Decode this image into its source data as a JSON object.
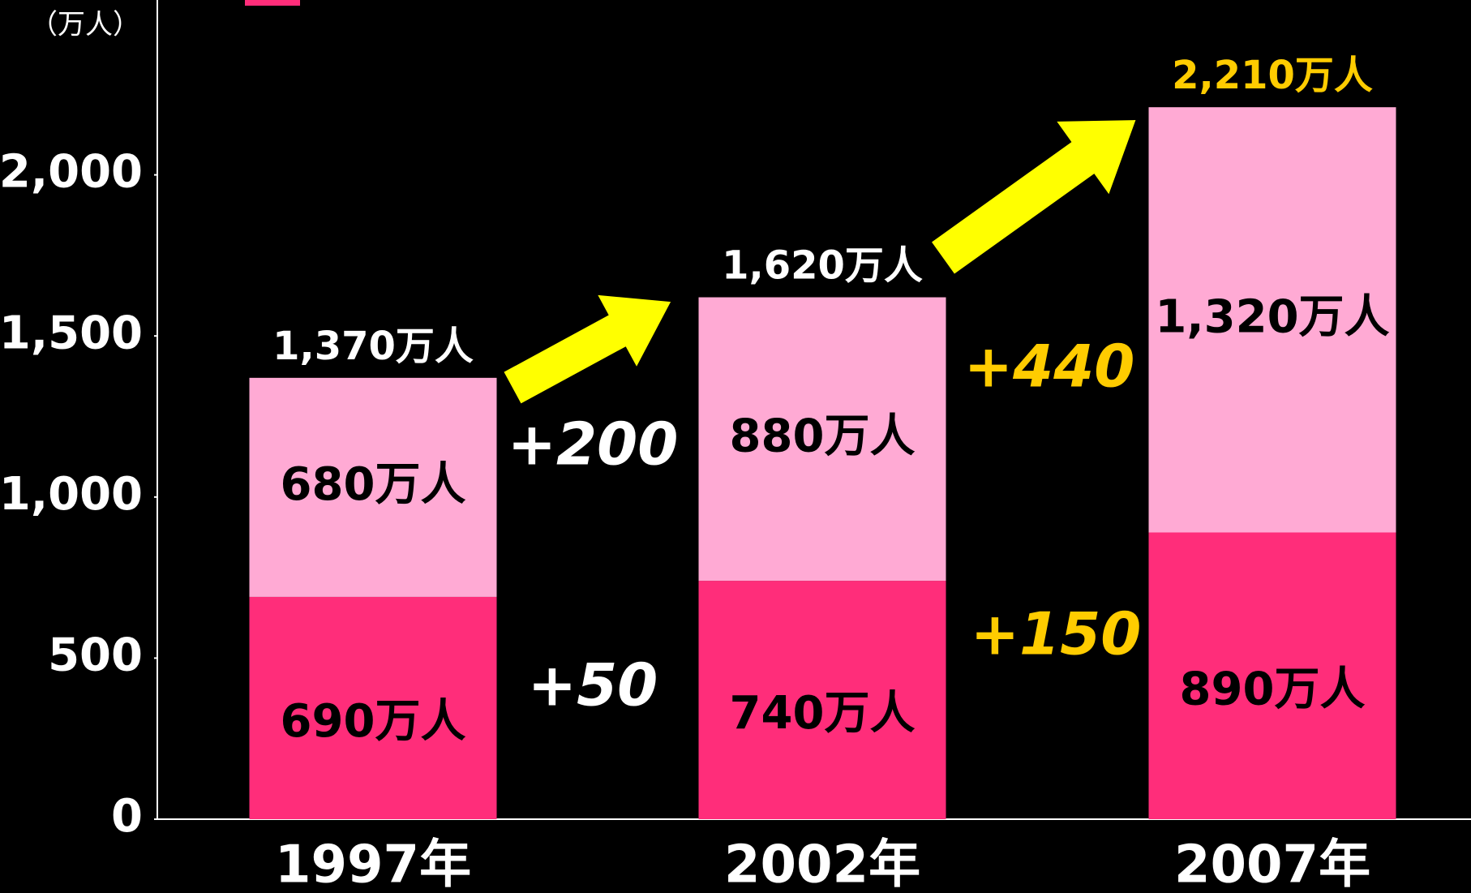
{
  "chart_data": {
    "type": "stacked_bar",
    "y_unit_label": "（万人）",
    "categories": [
      "1997年",
      "2002年",
      "2007年"
    ],
    "series": [
      {
        "color": "#ff2d7a",
        "values": [
          690,
          740,
          890
        ],
        "value_labels": [
          "690万人",
          "740万人",
          "890万人"
        ]
      },
      {
        "color": "#ffaad4",
        "values": [
          680,
          880,
          1320
        ],
        "value_labels": [
          "680万人",
          "880万人",
          "1,320万人"
        ]
      }
    ],
    "totals": {
      "values": [
        1370,
        1620,
        2210
      ],
      "value_labels": [
        "1,370万人",
        "1,620万人",
        "2,210万人"
      ],
      "colors": [
        "#ffffff",
        "#ffffff",
        "#ffcc00"
      ]
    },
    "annotations": [
      {
        "text": "+200",
        "color": "#ffffff"
      },
      {
        "text": "+50",
        "color": "#ffffff"
      },
      {
        "text": "+440",
        "color": "#ffcc00"
      },
      {
        "text": "+150",
        "color": "#ffcc00"
      }
    ],
    "ylim": [
      0,
      2500
    ],
    "yticks": [
      0,
      500,
      {
        "value": 1000,
        "label": "1,000"
      },
      {
        "value": 1500,
        "label": "1,500"
      },
      {
        "value": 2000,
        "label": "2,000"
      }
    ]
  }
}
